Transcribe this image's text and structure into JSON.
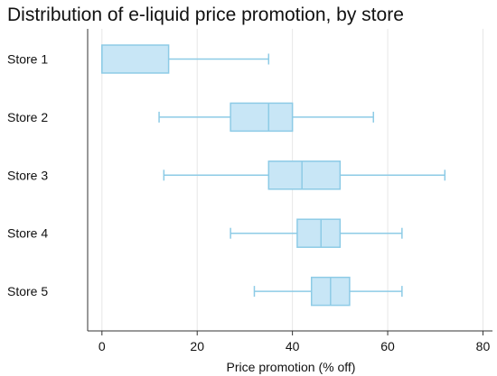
{
  "chart_data": {
    "type": "boxplot",
    "title": "Distribution of e-liquid price promotion, by store",
    "xlabel": "Price promotion (% off)",
    "ylabel": "",
    "xlim": [
      -3,
      82
    ],
    "xticks": [
      0,
      20,
      40,
      60,
      80
    ],
    "grid": "vertical",
    "legend": "none",
    "categories": [
      "Store 1",
      "Store 2",
      "Store 3",
      "Store 4",
      "Store 5"
    ],
    "boxes": [
      {
        "label": "Store 1",
        "whisker_low": 0,
        "q1": 0,
        "median": 0,
        "q3": 14,
        "whisker_high": 35
      },
      {
        "label": "Store 2",
        "whisker_low": 12,
        "q1": 27,
        "median": 35,
        "q3": 40,
        "whisker_high": 57
      },
      {
        "label": "Store 3",
        "whisker_low": 13,
        "q1": 35,
        "median": 42,
        "q3": 50,
        "whisker_high": 72
      },
      {
        "label": "Store 4",
        "whisker_low": 27,
        "q1": 41,
        "median": 46,
        "q3": 50,
        "whisker_high": 63
      },
      {
        "label": "Store 5",
        "whisker_low": 32,
        "q1": 44,
        "median": 48,
        "q3": 52,
        "whisker_high": 63
      }
    ],
    "colors": {
      "box_fill": "#c8e6f6",
      "box_stroke": "#8dcbe6",
      "grid": "#e6e6e6",
      "axis": "#333333"
    }
  }
}
